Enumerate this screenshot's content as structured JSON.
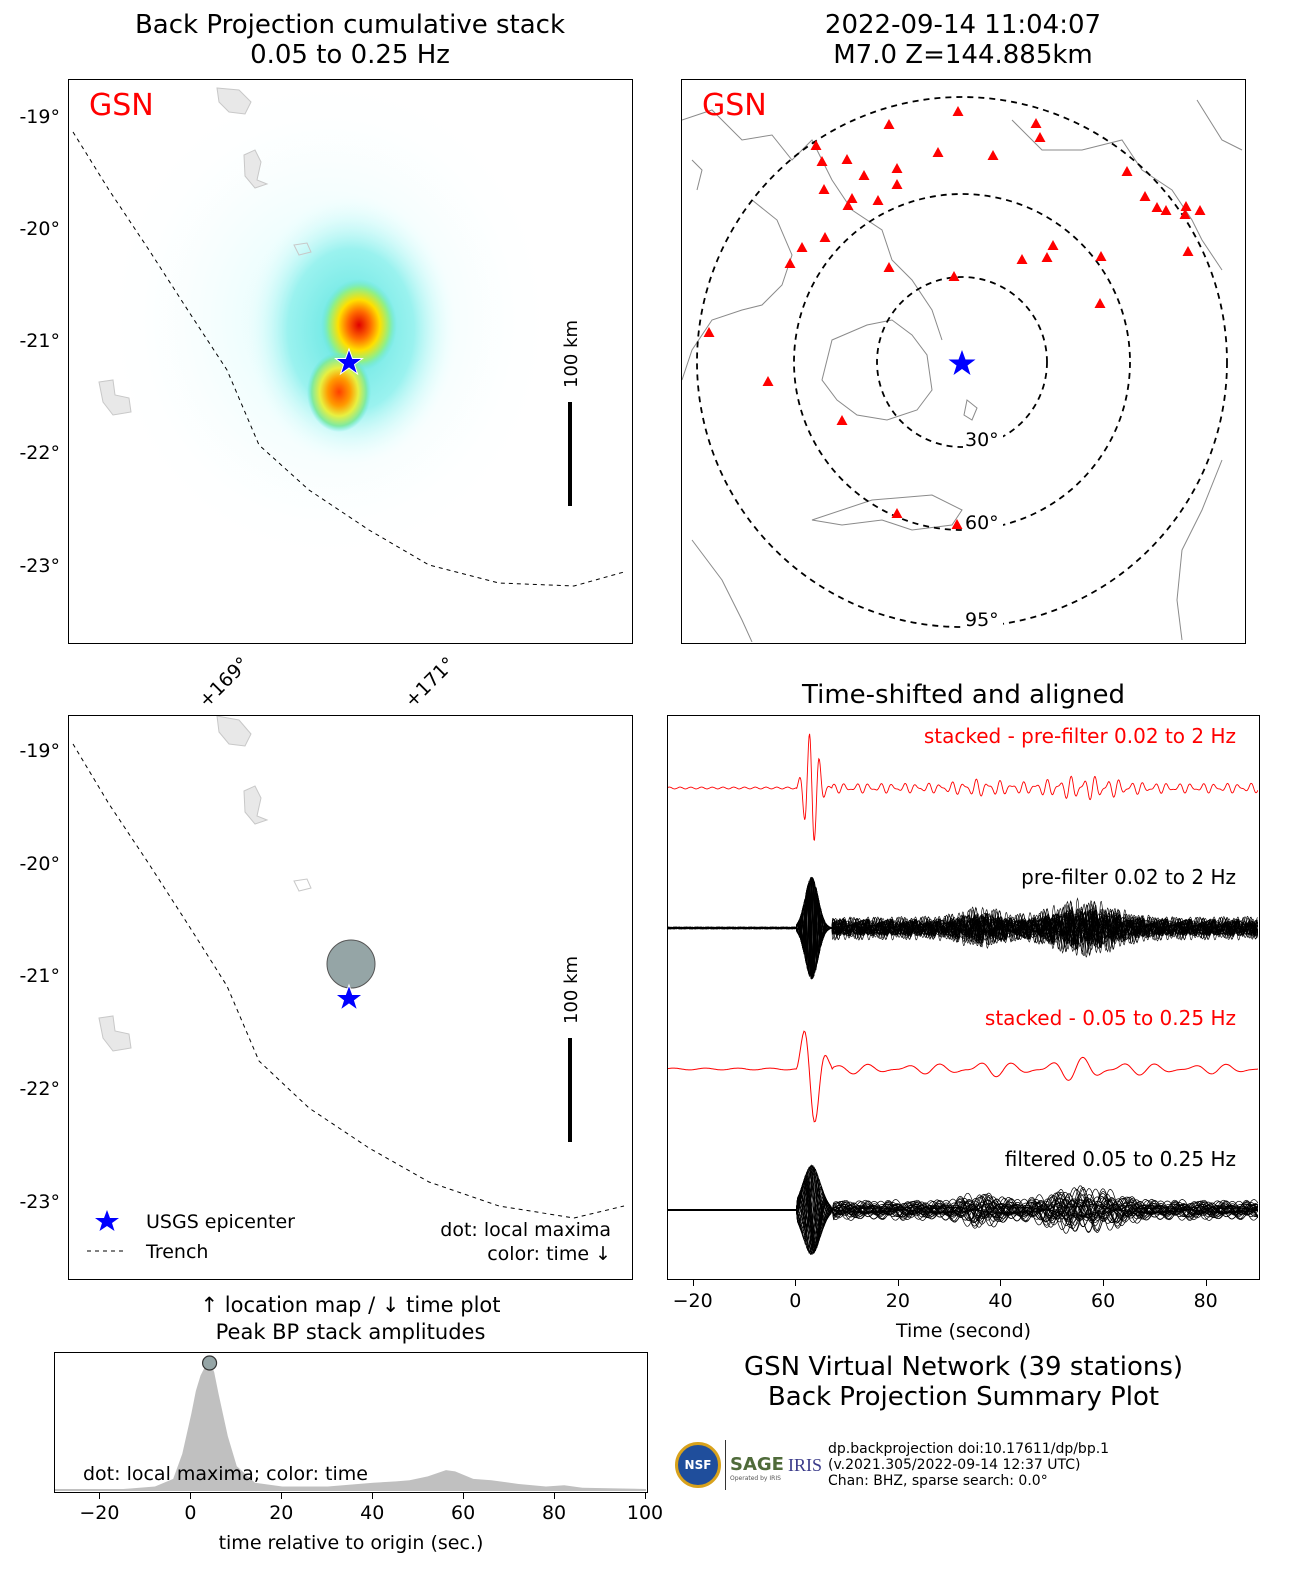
{
  "titles": {
    "bp_line1": "Back Projection cumulative stack",
    "bp_line2": "0.05 to 0.25 Hz",
    "event_line1": "2022-09-14 11:04:07",
    "event_line2": "M7.0 Z=144.885km",
    "traces": "Time-shifted and aligned",
    "peak_line1": "↑ location map / ↓ time plot",
    "peak_line2": "Peak BP stack amplitudes",
    "summary_line1": "GSN Virtual Network (39 stations)",
    "summary_line2": "Back Projection Summary Plot"
  },
  "network_label": "GSN",
  "lat_ticks": [
    "-19°",
    "-20°",
    "-21°",
    "-22°",
    "-23°"
  ],
  "lon_ticks": [
    "+169°",
    "+171°"
  ],
  "scale_bar_label": "100 km",
  "distance_rings": [
    "30°",
    "60°",
    "95°"
  ],
  "legend": {
    "epicenter": "USGS epicenter",
    "trench": "Trench",
    "note_line1": "dot: local maxima",
    "note_line2": "color: time ↓"
  },
  "traces": {
    "stacked_prefilter": "stacked - pre-filter 0.02 to 2 Hz",
    "prefilter": "pre-filter 0.02 to 2 Hz",
    "stacked_filtered": "stacked - 0.05 to 0.25 Hz",
    "filtered": "filtered 0.05 to 0.25 Hz",
    "xlabel": "Time (second)",
    "xticks": [
      "−20",
      "0",
      "20",
      "40",
      "60",
      "80"
    ]
  },
  "peak_plot": {
    "note": "dot: local maxima; color: time",
    "xlabel": "time relative to origin (sec.)",
    "xticks": [
      "−20",
      "0",
      "20",
      "40",
      "60",
      "80",
      "100"
    ]
  },
  "footer": {
    "nsf": "NSF",
    "sage": "SAGE",
    "sage_sub": "Operated by IRIS",
    "iris": "IRIS",
    "line1": "dp.backprojection doi:10.17611/dp/bp.1",
    "line2": "(v.2021.305/2022-09-14 12:37 UTC)",
    "line3": "Chan: BHZ, sparse search: 0.0°"
  },
  "colors": {
    "stations": "#ff0000",
    "epicenter": "#0000ff",
    "peak_fill": "#c0c0c0",
    "peak_dot": "#95a5a6"
  },
  "chart_data": [
    {
      "type": "heatmap",
      "title": "Back Projection cumulative stack\n0.05 to 0.25 Hz",
      "ylabel": "",
      "lat_ticks": [
        -19,
        -20,
        -21,
        -22,
        -23
      ],
      "maxima": [
        {
          "lon": 170.0,
          "lat": -20.9,
          "level": "high"
        },
        {
          "lon": 169.9,
          "lat": -21.5,
          "level": "medium"
        }
      ],
      "epicenter": {
        "lon": 170.0,
        "lat": -21.2
      }
    },
    {
      "type": "scatter",
      "title": "2022-09-14 11:04:07\nM7.0 Z=144.885km",
      "stations": 39,
      "rings_deg": [
        30,
        60,
        95
      ]
    },
    {
      "type": "line",
      "title": "Time-shifted and aligned",
      "xlabel": "Time (second)",
      "xlim": [
        -25,
        90
      ],
      "series": [
        {
          "name": "stacked - pre-filter 0.02 to 2 Hz"
        },
        {
          "name": "pre-filter 0.02 to 2 Hz"
        },
        {
          "name": "stacked - 0.05 to 0.25 Hz"
        },
        {
          "name": "filtered 0.05 to 0.25 Hz"
        }
      ]
    },
    {
      "type": "area",
      "title": "Peak BP stack amplitudes",
      "xlabel": "time relative to origin (sec.)",
      "xlim": [
        -30,
        100
      ],
      "x": [
        -30,
        -15,
        -8,
        -4,
        -2,
        0,
        1,
        2,
        3,
        4,
        5,
        6,
        8,
        10,
        14,
        20,
        30,
        40,
        45,
        48,
        52,
        56,
        58,
        62,
        66,
        72,
        78,
        82,
        86,
        100
      ],
      "y": [
        0,
        0.0,
        0.02,
        0.08,
        0.28,
        0.6,
        0.78,
        0.9,
        0.97,
        1.0,
        0.93,
        0.75,
        0.42,
        0.18,
        0.05,
        0.02,
        0.02,
        0.05,
        0.06,
        0.07,
        0.1,
        0.15,
        0.14,
        0.08,
        0.07,
        0.04,
        0.02,
        0.03,
        0.01,
        0.0
      ],
      "peak": {
        "x": 4,
        "y": 1.0
      }
    }
  ]
}
